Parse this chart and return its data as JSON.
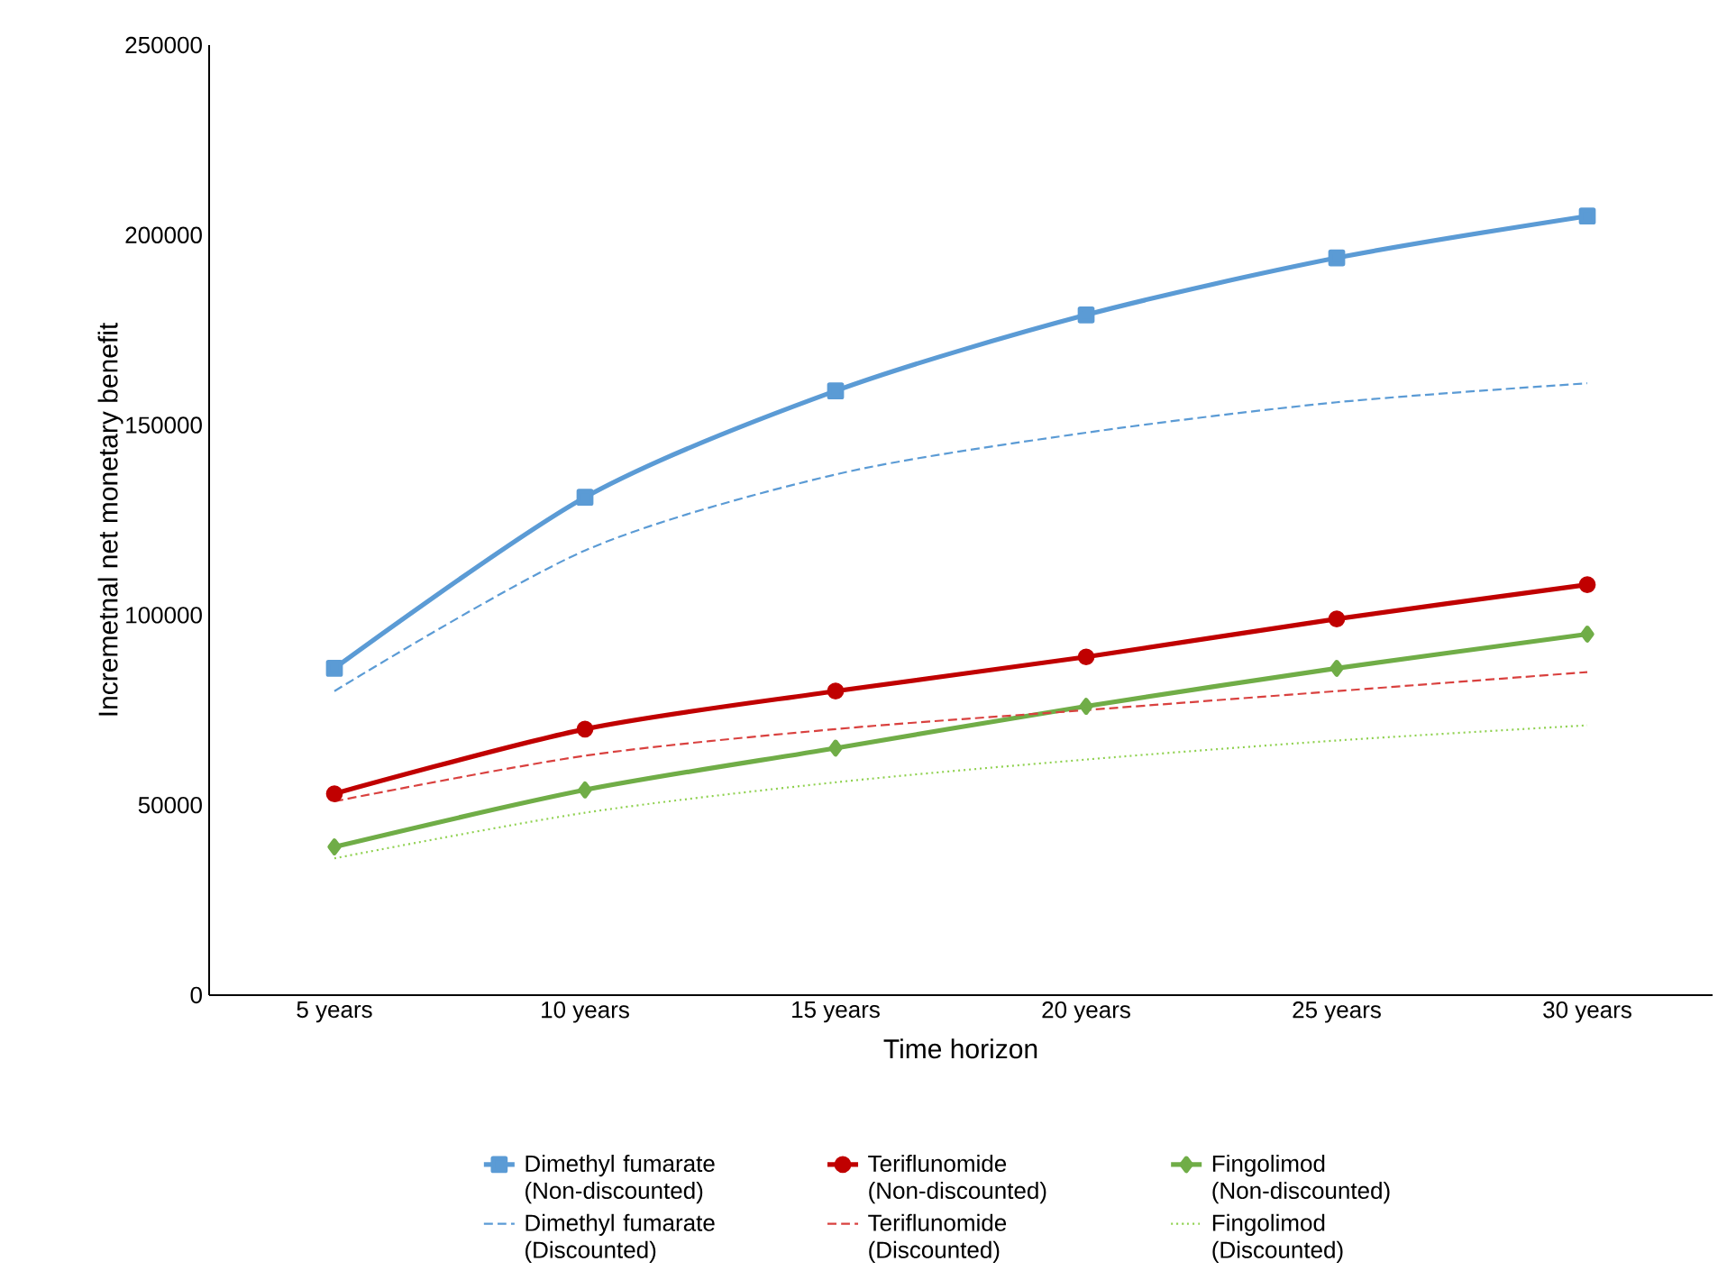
{
  "chart_data": {
    "type": "line",
    "xlabel": "Time horizon",
    "ylabel": "Incremetnal net monetary benefit",
    "categories": [
      "5 years",
      "10 years",
      "15 years",
      "20 years",
      "25 years",
      "30 years"
    ],
    "ylim": [
      0,
      250000
    ],
    "yticks": [
      0,
      50000,
      100000,
      150000,
      200000,
      250000
    ],
    "grid": false,
    "legend": "bottom",
    "series": [
      {
        "name": "Dimethyl fumarate (Non-discounted)",
        "color": "#5b9bd5",
        "marker": "square",
        "line_style": "solid",
        "values": [
          86000,
          131000,
          159000,
          179000,
          194000,
          205000
        ]
      },
      {
        "name": "Teriflunomide (Non-discounted)",
        "color": "#c00000",
        "marker": "circle",
        "line_style": "solid",
        "values": [
          53000,
          70000,
          80000,
          89000,
          99000,
          108000
        ]
      },
      {
        "name": "Fingolimod (Non-discounted)",
        "color": "#70ad47",
        "marker": "diamond",
        "line_style": "solid",
        "values": [
          39000,
          54000,
          65000,
          76000,
          86000,
          95000
        ]
      },
      {
        "name": "Dimethyl fumarate (Discounted)",
        "color": "#5b9bd5",
        "marker": "none",
        "line_style": "dashed",
        "values": [
          80000,
          117000,
          137000,
          148000,
          156000,
          161000
        ]
      },
      {
        "name": "Teriflunomide (Discounted)",
        "color": "#d9413f",
        "marker": "none",
        "line_style": "dashed",
        "values": [
          51000,
          63000,
          70000,
          75000,
          80000,
          85000
        ]
      },
      {
        "name": "Fingolimod (Discounted)",
        "color": "#8fd14f",
        "marker": "none",
        "line_style": "dotted",
        "values": [
          36000,
          48000,
          56000,
          62000,
          67000,
          71000
        ]
      }
    ]
  }
}
